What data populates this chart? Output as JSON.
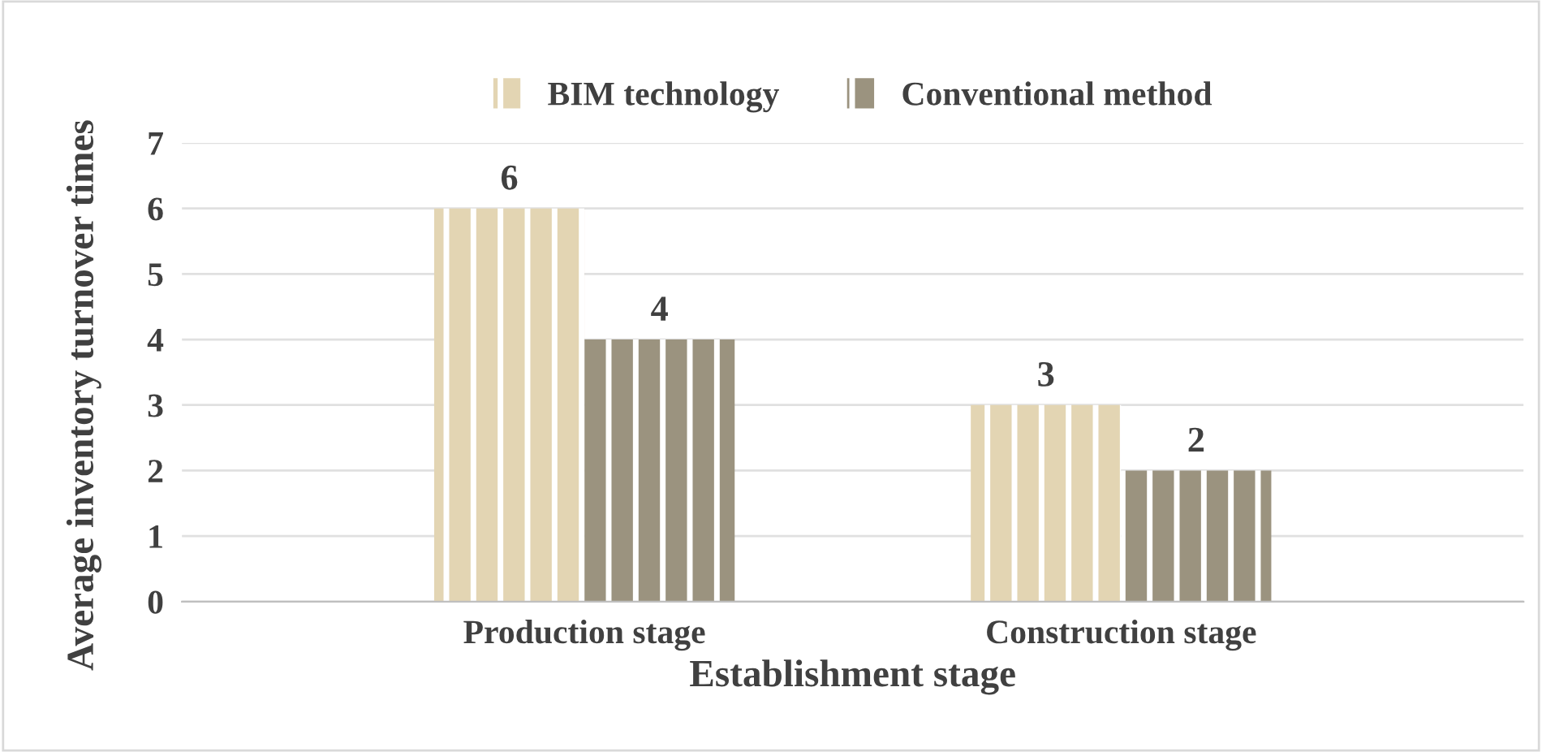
{
  "chart_data": {
    "type": "bar",
    "xlabel": "Establishment stage",
    "ylabel": "Average inventory turnover times",
    "categories": [
      "Production stage",
      "Construction stage"
    ],
    "series": [
      {
        "name": "BIM technology",
        "color": "#e3d5b3",
        "values": [
          6,
          3
        ]
      },
      {
        "name": "Conventional method",
        "color": "#9b937f",
        "values": [
          4,
          2
        ]
      }
    ],
    "ylim": [
      0,
      7
    ],
    "yticks": [
      0,
      1,
      2,
      3,
      4,
      5,
      6,
      7
    ],
    "grid": "y",
    "legend": "top",
    "data_labels": true
  }
}
